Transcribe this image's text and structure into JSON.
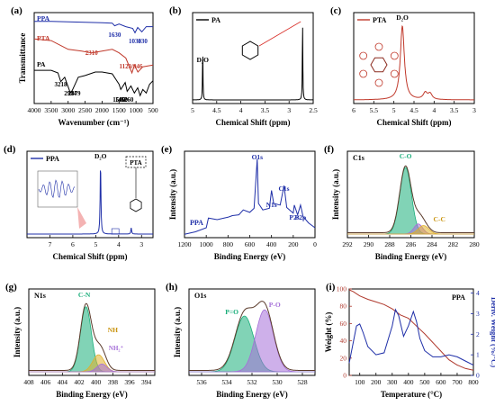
{
  "chart_data": [
    {
      "panel": "(a)",
      "type": "line",
      "xlabel": "Wavenumber (cm⁻¹)",
      "ylabel": "Transmittance",
      "xlim": [
        4000,
        500
      ],
      "xticks": [
        4000,
        3500,
        3000,
        2500,
        2000,
        1500,
        1000,
        500
      ],
      "legend": [
        "PPA",
        "PTA",
        "PA"
      ],
      "annotations": [
        "1630",
        "1030",
        "830",
        "2310",
        "1120",
        "946",
        "3218",
        "2934",
        "2879",
        "1500",
        "1450",
        "1260"
      ],
      "series": [
        {
          "name": "PPA",
          "color": "#1f2fa8",
          "x": [
            4000,
            3500,
            3000,
            2500,
            2000,
            1700,
            1630,
            1500,
            1300,
            1100,
            1030,
            950,
            830,
            700,
            500
          ],
          "y": [
            0.92,
            0.92,
            0.915,
            0.91,
            0.905,
            0.9,
            0.87,
            0.89,
            0.86,
            0.84,
            0.79,
            0.85,
            0.8,
            0.86,
            0.86
          ]
        },
        {
          "name": "PTA",
          "color": "#c0392b",
          "x": [
            4000,
            3500,
            3200,
            3000,
            2600,
            2310,
            2000,
            1700,
            1500,
            1300,
            1120,
            1050,
            946,
            800,
            500
          ],
          "y": [
            0.72,
            0.7,
            0.64,
            0.6,
            0.58,
            0.56,
            0.58,
            0.6,
            0.56,
            0.5,
            0.33,
            0.42,
            0.34,
            0.4,
            0.42
          ]
        },
        {
          "name": "PA",
          "color": "#000000",
          "x": [
            4000,
            3500,
            3300,
            3218,
            3100,
            2934,
            2879,
            2700,
            2500,
            2200,
            2000,
            1700,
            1500,
            1450,
            1320,
            1260,
            1150,
            1050,
            950,
            880,
            800,
            700,
            600,
            500
          ],
          "y": [
            0.36,
            0.36,
            0.33,
            0.23,
            0.28,
            0.1,
            0.13,
            0.28,
            0.3,
            0.34,
            0.34,
            0.32,
            0.2,
            0.14,
            0.22,
            0.12,
            0.18,
            0.1,
            0.16,
            0.07,
            0.14,
            0.1,
            0.2,
            0.24
          ]
        }
      ]
    },
    {
      "panel": "(b)",
      "type": "line",
      "xlabel": "Chemical Shift (ppm)",
      "xlim": [
        5.0,
        2.5
      ],
      "xticks": [
        5.0,
        4.5,
        4.0,
        3.5,
        3.0,
        2.5
      ],
      "legend": [
        "PA"
      ],
      "annotations": [
        "D₂O"
      ],
      "series": [
        {
          "name": "PA",
          "color": "#000000",
          "peaks": [
            {
              "x": 4.79,
              "h": 0.62,
              "label": "D₂O"
            },
            {
              "x": 2.72,
              "h": 0.92
            }
          ]
        }
      ]
    },
    {
      "panel": "(c)",
      "type": "line",
      "xlabel": "Chemical Shift (ppm)",
      "xlim": [
        6.0,
        3.0
      ],
      "xticks": [
        6.0,
        5.5,
        5.0,
        4.5,
        4.0,
        3.5,
        3.0
      ],
      "legend": [
        "PTA"
      ],
      "annotations": [
        "D₂O"
      ],
      "series": [
        {
          "name": "PTA",
          "color": "#c0392b",
          "peaks": [
            {
              "x": 4.79,
              "h": 0.9,
              "label": "D₂O"
            },
            {
              "x": 4.22,
              "h": 0.08
            },
            {
              "x": 4.1,
              "h": 0.07
            }
          ]
        }
      ]
    },
    {
      "panel": "(d)",
      "type": "line",
      "xlabel": "Chemical Shift (ppm)",
      "xlim": [
        8.0,
        2.5
      ],
      "xticks": [
        7.0,
        6.0,
        5.0,
        4.0,
        3.0
      ],
      "legend": [
        "PPA"
      ],
      "annotations": [
        "D₂O",
        "PTA"
      ],
      "series": [
        {
          "name": "PPA",
          "color": "#1f2fa8",
          "peaks": [
            {
              "x": 4.79,
              "h": 0.9,
              "label": "D₂O"
            },
            {
              "x": 3.45,
              "h": 0.08
            }
          ]
        }
      ]
    },
    {
      "panel": "(e)",
      "type": "line",
      "xlabel": "Binding Energy (eV)",
      "ylabel": "Intensity (a.u.)",
      "xlim": [
        1200,
        0
      ],
      "xticks": [
        1200,
        1000,
        800,
        600,
        400,
        200,
        0
      ],
      "legend": [
        "PPA"
      ],
      "annotations": [
        "O1s",
        "N1s",
        "C1s",
        "P2s",
        "P2p"
      ],
      "series": [
        {
          "name": "PPA",
          "color": "#1f2fa8",
          "x": [
            1200,
            1100,
            1000,
            980,
            900,
            800,
            760,
            700,
            660,
            600,
            560,
            531,
            520,
            480,
            420,
            400,
            380,
            320,
            285,
            260,
            200,
            190,
            160,
            133,
            110,
            60,
            0
          ],
          "y": [
            0.02,
            0.05,
            0.1,
            0.22,
            0.2,
            0.23,
            0.25,
            0.26,
            0.32,
            0.29,
            0.34,
            0.95,
            0.4,
            0.32,
            0.34,
            0.56,
            0.4,
            0.38,
            0.62,
            0.35,
            0.28,
            0.38,
            0.26,
            0.38,
            0.24,
            0.16,
            0.1
          ]
        }
      ]
    },
    {
      "panel": "(f)",
      "type": "area",
      "xlabel": "Binding Energy (eV)",
      "ylabel": "Intensity (a.u.)",
      "xlim": [
        292,
        280
      ],
      "xticks": [
        292,
        290,
        288,
        286,
        284,
        282,
        280
      ],
      "legend": [
        "C1s"
      ],
      "annotations": [
        "C-O",
        "C-C"
      ],
      "peaks": [
        {
          "name": "C-O",
          "center": 286.5,
          "sigma": 0.55,
          "height": 0.86,
          "color": "#1aae7a"
        },
        {
          "name": "",
          "center": 285.3,
          "sigma": 0.42,
          "height": 0.13,
          "color": "#a56fd8"
        },
        {
          "name": "C-C",
          "center": 284.8,
          "sigma": 0.5,
          "height": 0.11,
          "color": "#e0b02a"
        }
      ]
    },
    {
      "panel": "(g)",
      "type": "area",
      "xlabel": "Binding Energy (eV)",
      "ylabel": "Intensity (a.u.)",
      "xlim": [
        408,
        393
      ],
      "xticks": [
        408,
        406,
        404,
        402,
        400,
        398,
        396,
        394
      ],
      "legend": [
        "N1s"
      ],
      "annotations": [
        "C-N",
        "NH",
        "NH₂⁺"
      ],
      "peaks": [
        {
          "name": "C-N",
          "center": 401.2,
          "sigma": 0.65,
          "height": 0.84,
          "color": "#1aae7a"
        },
        {
          "name": "NH",
          "center": 399.7,
          "sigma": 0.7,
          "height": 0.22,
          "color": "#e0b02a"
        },
        {
          "name": "NH₂⁺",
          "center": 399.3,
          "sigma": 0.6,
          "height": 0.1,
          "color": "#a56fd8"
        }
      ]
    },
    {
      "panel": "(h)",
      "type": "area",
      "xlabel": "Binding Energy (eV)",
      "ylabel": "Intensity (a.u.)",
      "xlim": [
        537,
        527
      ],
      "xticks": [
        536,
        534,
        532,
        530,
        528
      ],
      "legend": [
        "O1s"
      ],
      "annotations": [
        "P=O",
        "P-O"
      ],
      "peaks": [
        {
          "name": "P=O",
          "center": 532.6,
          "sigma": 0.75,
          "height": 0.72,
          "color": "#1aae7a"
        },
        {
          "name": "P-O",
          "center": 531.0,
          "sigma": 0.7,
          "height": 0.8,
          "color": "#a56fd8"
        }
      ]
    },
    {
      "panel": "(i)",
      "type": "line",
      "xlabel": "Temperature (°C)",
      "ylabel": "Weight (%)",
      "y2label": "Deriv. Weight (%/°C)",
      "xlim": [
        35,
        800
      ],
      "ylim": [
        0,
        100
      ],
      "y2lim": [
        0,
        4.2
      ],
      "xticks": [
        100,
        200,
        300,
        400,
        500,
        600,
        700,
        800
      ],
      "yticks": [
        0,
        20,
        40,
        60,
        80,
        100
      ],
      "y2ticks": [
        0,
        1,
        2,
        3,
        4
      ],
      "legend": [
        "PPA"
      ],
      "series": [
        {
          "name": "",
          "axis": "left",
          "color": "#b03a2e",
          "x": [
            35,
            60,
            100,
            150,
            200,
            250,
            300,
            350,
            400,
            450,
            500,
            550,
            600,
            650,
            700,
            750,
            800
          ],
          "y": [
            99,
            97,
            92,
            88,
            85,
            82,
            77,
            70,
            66,
            57,
            48,
            38,
            28,
            18,
            12,
            8,
            6
          ]
        },
        {
          "name": "",
          "axis": "right",
          "color": "#1f2fa8",
          "x": [
            35,
            60,
            80,
            100,
            120,
            150,
            200,
            250,
            300,
            320,
            340,
            370,
            400,
            430,
            450,
            470,
            500,
            550,
            600,
            650,
            700,
            750,
            800
          ],
          "y": [
            0.6,
            1.6,
            2.4,
            2.5,
            2.1,
            1.4,
            1.0,
            1.1,
            2.4,
            3.2,
            2.9,
            1.9,
            2.4,
            3.1,
            2.6,
            1.8,
            1.2,
            0.9,
            0.9,
            1.0,
            0.9,
            0.7,
            0.5
          ]
        }
      ]
    }
  ]
}
